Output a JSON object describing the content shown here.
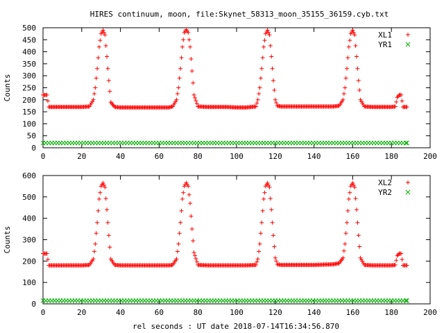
{
  "colors": {
    "red_series": "#ff0000",
    "green_series": "#00b000",
    "axis": "#000000"
  },
  "chart_data": [
    {
      "type": "scatter",
      "title": "HIRES continuum, moon, file:Skynet_58313_moon_35155_36159.cyb.txt",
      "xlabel": "",
      "ylabel": "Counts",
      "xlim": [
        0,
        200
      ],
      "ylim": [
        0,
        500
      ],
      "xticks": [
        "0",
        "20",
        "40",
        "60",
        "80",
        "100",
        "120",
        "140",
        "160",
        "180",
        "200"
      ],
      "yticks": [
        "0",
        "50",
        "100",
        "150",
        "200",
        "250",
        "300",
        "350",
        "400",
        "450",
        "500"
      ],
      "legend_position": "top-right",
      "grid": false,
      "series": [
        {
          "name": "XL1",
          "marker": "plus",
          "color": "#ff0000",
          "x": [
            0,
            2,
            3,
            5,
            10,
            15,
            20,
            24,
            26,
            27,
            28,
            29,
            30,
            31,
            32,
            33,
            34,
            35,
            37,
            40,
            45,
            50,
            55,
            60,
            65,
            67,
            69,
            70,
            71,
            72,
            73,
            74,
            75,
            76,
            77,
            78,
            80,
            85,
            90,
            95,
            100,
            105,
            110,
            111,
            112,
            113,
            114,
            115,
            116,
            117,
            118,
            119,
            120,
            121,
            123,
            130,
            140,
            150,
            153,
            155,
            156,
            157,
            158,
            159,
            160,
            161,
            162,
            163,
            164,
            166,
            170,
            175,
            180,
            182,
            183,
            184,
            185,
            186,
            188
          ],
          "y": [
            220,
            220,
            170,
            170,
            170,
            170,
            170,
            172,
            200,
            250,
            330,
            420,
            475,
            490,
            470,
            380,
            280,
            190,
            170,
            168,
            168,
            168,
            168,
            168,
            168,
            172,
            200,
            250,
            330,
            420,
            480,
            492,
            480,
            420,
            320,
            220,
            172,
            170,
            170,
            170,
            168,
            168,
            172,
            200,
            250,
            330,
            420,
            475,
            490,
            470,
            380,
            280,
            200,
            175,
            172,
            172,
            172,
            172,
            175,
            200,
            250,
            330,
            420,
            475,
            490,
            470,
            380,
            280,
            200,
            172,
            170,
            170,
            170,
            172,
            210,
            220,
            220,
            170,
            170
          ]
        },
        {
          "name": "YR1",
          "marker": "cross",
          "color": "#00b000",
          "x": [
            0,
            188
          ],
          "y": [
            20,
            20
          ]
        }
      ]
    },
    {
      "type": "scatter",
      "title": "",
      "xlabel": "rel seconds : UT date 2018-07-14T16:34:56.870",
      "ylabel": "Counts",
      "xlim": [
        0,
        200
      ],
      "ylim": [
        0,
        600
      ],
      "xticks": [
        "0",
        "20",
        "40",
        "60",
        "80",
        "100",
        "120",
        "140",
        "160",
        "180",
        "200"
      ],
      "yticks": [
        "0",
        "100",
        "200",
        "300",
        "400",
        "500",
        "600"
      ],
      "legend_position": "top-right",
      "grid": false,
      "series": [
        {
          "name": "XL2",
          "marker": "plus",
          "color": "#ff0000",
          "x": [
            0,
            2,
            3,
            5,
            10,
            15,
            20,
            24,
            26,
            27,
            28,
            29,
            30,
            31,
            32,
            33,
            34,
            35,
            37,
            40,
            45,
            50,
            55,
            60,
            65,
            67,
            69,
            70,
            71,
            72,
            73,
            74,
            75,
            76,
            77,
            78,
            80,
            85,
            90,
            95,
            100,
            105,
            110,
            111,
            112,
            113,
            114,
            115,
            116,
            117,
            118,
            119,
            120,
            121,
            123,
            130,
            140,
            150,
            153,
            155,
            156,
            157,
            158,
            159,
            160,
            161,
            162,
            163,
            164,
            166,
            170,
            175,
            180,
            182,
            183,
            184,
            185,
            186,
            188
          ],
          "y": [
            235,
            235,
            180,
            180,
            180,
            180,
            180,
            182,
            210,
            280,
            380,
            490,
            550,
            565,
            545,
            440,
            320,
            210,
            182,
            180,
            180,
            180,
            180,
            180,
            180,
            182,
            210,
            280,
            380,
            490,
            550,
            566,
            550,
            470,
            350,
            240,
            182,
            180,
            180,
            180,
            180,
            180,
            182,
            210,
            280,
            380,
            490,
            550,
            565,
            545,
            440,
            320,
            215,
            185,
            182,
            182,
            182,
            185,
            190,
            215,
            280,
            380,
            490,
            550,
            565,
            545,
            440,
            320,
            215,
            182,
            180,
            180,
            180,
            182,
            225,
            235,
            235,
            180,
            180
          ]
        },
        {
          "name": "YR2",
          "marker": "cross",
          "color": "#00b000",
          "x": [
            0,
            188
          ],
          "y": [
            15,
            15
          ]
        }
      ]
    }
  ]
}
